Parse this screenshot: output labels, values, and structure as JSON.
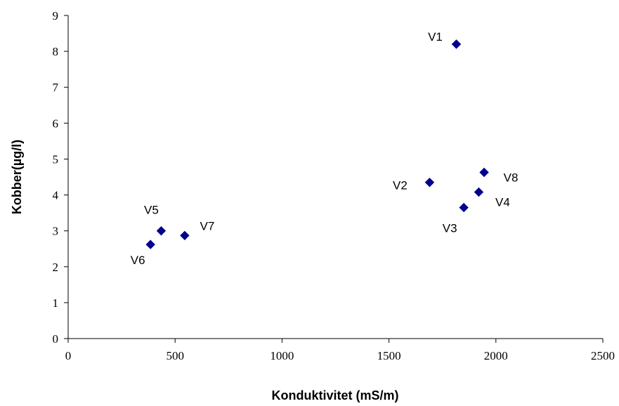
{
  "chart_data": {
    "type": "scatter",
    "xlabel": "Konduktivitet (mS/m)",
    "ylabel": "Kobber(µg/l)",
    "xlim": [
      0,
      2500
    ],
    "ylim": [
      0,
      9
    ],
    "x_ticks": [
      "0",
      "500",
      "1000",
      "1500",
      "2000",
      "2500"
    ],
    "y_ticks": [
      "0",
      "1",
      "2",
      "3",
      "4",
      "5",
      "6",
      "7",
      "8",
      "9"
    ],
    "grid": false,
    "marker_color": "#00008b",
    "points": [
      {
        "label": "V1",
        "x": 1815,
        "y": 8.2
      },
      {
        "label": "V2",
        "x": 1690,
        "y": 4.35
      },
      {
        "label": "V3",
        "x": 1850,
        "y": 3.65
      },
      {
        "label": "V4",
        "x": 1920,
        "y": 4.08
      },
      {
        "label": "V5",
        "x": 435,
        "y": 3.0
      },
      {
        "label": "V6",
        "x": 385,
        "y": 2.62
      },
      {
        "label": "V7",
        "x": 545,
        "y": 2.87
      },
      {
        "label": "V8",
        "x": 1945,
        "y": 4.63
      }
    ]
  }
}
